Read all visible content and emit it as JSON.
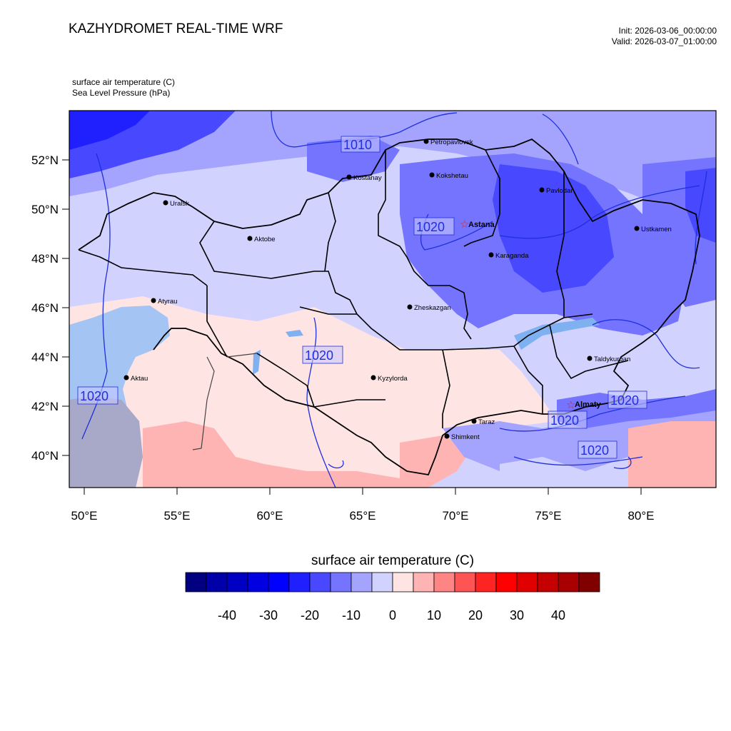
{
  "header": {
    "title": "KAZHYDROMET REAL-TIME WRF",
    "init": "Init: 2026-03-06_00:00:00",
    "valid": "Valid: 2026-03-07_01:00:00",
    "variable_1": "surface air temperature   (C)",
    "variable_2": "Sea Level Pressure   (hPa)"
  },
  "map": {
    "lon_ticks": [
      "50°E",
      "55°E",
      "60°E",
      "65°E",
      "70°E",
      "75°E",
      "80°E"
    ],
    "lat_ticks": [
      "52°N",
      "50°N",
      "48°N",
      "46°N",
      "44°N",
      "42°N",
      "40°N"
    ],
    "cities": [
      {
        "name": "Petropavlovsk"
      },
      {
        "name": "Kostanay"
      },
      {
        "name": "Kokshetau"
      },
      {
        "name": "Pavlodar"
      },
      {
        "name": "Uralsk"
      },
      {
        "name": "Aktobe"
      },
      {
        "name": "Ustkamen"
      },
      {
        "name": "Karaganda"
      },
      {
        "name": "Atyrau"
      },
      {
        "name": "Zheskazgan"
      },
      {
        "name": "Taldykurgan"
      },
      {
        "name": "Aktau"
      },
      {
        "name": "Kyzylorda"
      },
      {
        "name": "Taraz"
      },
      {
        "name": "Shimkent"
      }
    ],
    "capitals": [
      {
        "name": "Astana"
      },
      {
        "name": "Almaty"
      }
    ],
    "pressure_labels": [
      "1010",
      "1020",
      "1020",
      "1020",
      "1020",
      "1020",
      "1020"
    ]
  },
  "colorbar": {
    "title": "surface air temperature  (C)",
    "labels": [
      "-40",
      "-30",
      "-20",
      "-10",
      "0",
      "10",
      "20",
      "30",
      "40"
    ],
    "colors": [
      "#000080",
      "#0000a8",
      "#0000c4",
      "#0000e0",
      "#0000ff",
      "#2020ff",
      "#4848ff",
      "#7474ff",
      "#a4a4ff",
      "#d2d2ff",
      "#ffe4e4",
      "#ffb4b4",
      "#ff8484",
      "#ff5454",
      "#ff2424",
      "#ff0000",
      "#e00000",
      "#c40000",
      "#a80000",
      "#800000"
    ]
  }
}
